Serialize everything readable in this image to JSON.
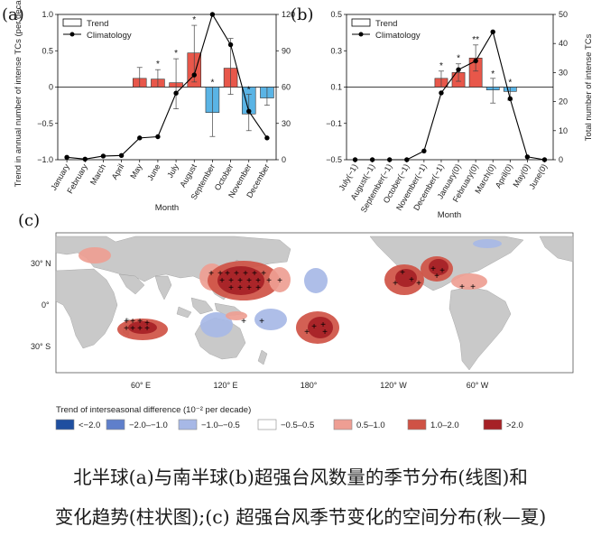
{
  "panel_labels": {
    "a": "(a)",
    "b": "(b)",
    "c": "(c)"
  },
  "colors": {
    "pos": "#e8574a",
    "neg": "#5ab4e5",
    "line": "#000000",
    "land": "#c8c8c8",
    "ocean": "#ffffff"
  },
  "chart_data": [
    {
      "type": "bar",
      "panel": "a",
      "categories": [
        "January",
        "February",
        "March",
        "April",
        "May",
        "June",
        "July",
        "August",
        "September",
        "October",
        "November",
        "December"
      ],
      "series": [
        {
          "name": "Trend",
          "kind": "bar",
          "axis": "left",
          "values": [
            0,
            0,
            0,
            0,
            0.12,
            0.11,
            0.06,
            0.47,
            -0.35,
            0.26,
            -0.37,
            -0.15
          ],
          "err_hi": [
            0,
            0,
            0,
            0,
            0.27,
            0.24,
            0.39,
            0.85,
            0.0,
            0.67,
            -0.1,
            0.0
          ],
          "err_lo": [
            0,
            0,
            0,
            0,
            0.0,
            0.0,
            -0.3,
            0.07,
            -0.68,
            -0.1,
            -0.6,
            -0.25
          ],
          "significant": [
            false,
            false,
            false,
            false,
            false,
            true,
            true,
            true,
            true,
            false,
            true,
            false
          ]
        },
        {
          "name": "Climatology",
          "kind": "line",
          "axis": "right",
          "values": [
            2,
            0.5,
            3,
            3.5,
            18,
            19,
            55,
            70,
            120,
            95,
            40,
            18
          ]
        }
      ],
      "ylabel": "Trend in annual number of intense TCs (per decade)",
      "y2label": "",
      "xlabel": "Month",
      "ylim": [
        -1.0,
        1.0
      ],
      "y2lim": [
        0,
        120
      ],
      "yticks": [
        "−1.0",
        "−0.5",
        "0",
        "0.5",
        "1.0"
      ],
      "y2ticks": [
        "0",
        "30",
        "60",
        "90",
        "120"
      ]
    },
    {
      "type": "bar",
      "panel": "b",
      "categories": [
        "July(−1)",
        "August(−1)",
        "September(−1)",
        "October(−1)",
        "November(−1)",
        "December(−1)",
        "January(0)",
        "February(0)",
        "March(0)",
        "April(0)",
        "May(0)",
        "June(0)"
      ],
      "series": [
        {
          "name": "Trend",
          "kind": "bar",
          "axis": "left",
          "values": [
            0,
            0,
            0,
            0,
            0,
            0.06,
            0.1,
            0.2,
            -0.02,
            -0.03,
            0,
            0
          ],
          "err_hi": [
            0,
            0,
            0,
            0,
            0,
            0.11,
            0.16,
            0.29,
            0.06,
            0.0,
            0,
            0
          ],
          "err_lo": [
            0,
            0,
            0,
            0,
            0,
            0.0,
            0.04,
            0.11,
            -0.11,
            -0.09,
            0,
            0
          ],
          "significant": [
            false,
            false,
            false,
            false,
            false,
            true,
            true,
            true,
            true,
            true,
            false,
            false
          ]
        },
        {
          "name": "Climatology",
          "kind": "line",
          "axis": "right",
          "values": [
            0,
            0,
            0,
            0,
            3,
            23,
            31,
            34,
            44,
            21,
            1,
            0
          ]
        }
      ],
      "ylabel": "",
      "y2label": "Total number of intense TCs",
      "xlabel": "Month",
      "ylim": [
        -0.5,
        0.5
      ],
      "y2lim": [
        0,
        50
      ],
      "yticks": [
        "−0.5",
        "−0.1",
        "0.1",
        "0.3",
        "0.5"
      ],
      "y2ticks": [
        "0",
        "10",
        "20",
        "30",
        "40",
        "50"
      ]
    },
    {
      "type": "heatmap",
      "panel": "c",
      "lat_labels": [
        "30° N",
        "0°",
        "30° S"
      ],
      "lon_labels": [
        "60° E",
        "120° E",
        "180°",
        "120° W",
        "60° W"
      ],
      "legend_title": "Trend of interseasonal difference (10⁻² per decade)",
      "legend": [
        {
          "label": "<−2.0",
          "color": "#1f4fa0"
        },
        {
          "label": "−2.0–−1.0",
          "color": "#5f7fcb"
        },
        {
          "label": "−1.0–−0.5",
          "color": "#a7b8e6"
        },
        {
          "label": "−0.5–0.5",
          "color": "#ffffff"
        },
        {
          "label": "0.5–1.0",
          "color": "#ee9e93"
        },
        {
          "label": "1.0–2.0",
          "color": "#cf5245"
        },
        {
          "label": ">2.0",
          "color": "#a62126"
        }
      ]
    }
  ],
  "caption": {
    "line1": "北半球(a)与南半球(b)超强台风数量的季节分布(线图)和",
    "line2": "变化趋势(柱状图);(c) 超强台风季节变化的空间分布(秋—夏)"
  }
}
